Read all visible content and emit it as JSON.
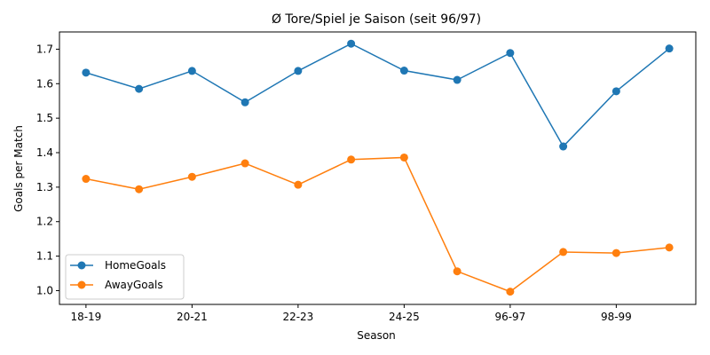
{
  "chart_data": {
    "type": "line",
    "title": "Ø Tore/Spiel je Saison (seit 96/97)",
    "xlabel": "Season",
    "ylabel": "Goals per Match",
    "x_tick_labels": [
      "18-19",
      "20-21",
      "22-23",
      "24-25",
      "96-97",
      "98-99"
    ],
    "x_tick_positions": [
      0,
      2,
      4,
      6,
      8,
      10
    ],
    "x": [
      0,
      1,
      2,
      3,
      4,
      5,
      6,
      7,
      8,
      9,
      10,
      11
    ],
    "xlim": [
      -0.5,
      11.5
    ],
    "ylim": [
      0.96,
      1.75
    ],
    "yticks": [
      1.0,
      1.1,
      1.2,
      1.3,
      1.4,
      1.5,
      1.6,
      1.7
    ],
    "ytick_labels": [
      "1.0",
      "1.1",
      "1.2",
      "1.3",
      "1.4",
      "1.5",
      "1.6",
      "1.7"
    ],
    "grid": false,
    "legend_position": "lower-left",
    "series": [
      {
        "name": "HomeGoals",
        "color": "#1f77b4",
        "values": [
          1.632,
          1.585,
          1.637,
          1.546,
          1.637,
          1.716,
          1.638,
          1.611,
          1.689,
          1.418,
          1.578,
          1.702
        ]
      },
      {
        "name": "AwayGoals",
        "color": "#ff7f0e",
        "values": [
          1.324,
          1.294,
          1.33,
          1.369,
          1.307,
          1.38,
          1.386,
          1.056,
          0.997,
          1.112,
          1.109,
          1.125
        ]
      }
    ]
  }
}
